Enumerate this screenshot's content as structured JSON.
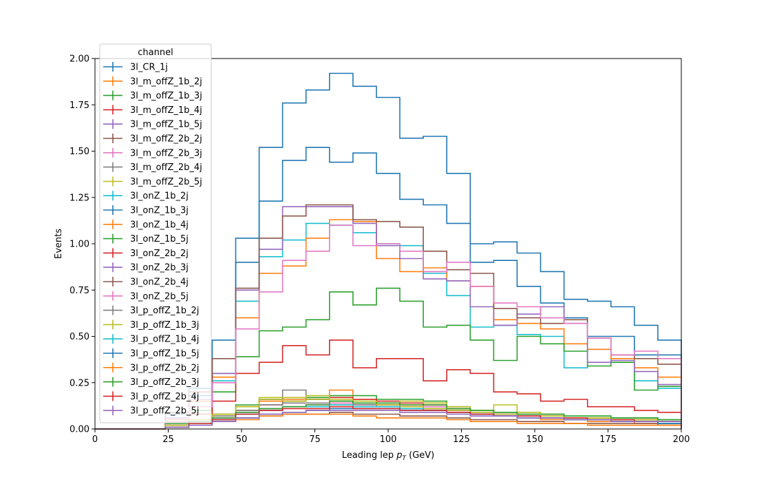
{
  "chart_data": {
    "type": "line",
    "drawstyle": "step",
    "xlabel_main": "Leading lep ",
    "xlabel_var": "p",
    "xlabel_sub": "T",
    "xlabel_unit": " (GeV)",
    "ylabel": "Events",
    "xlim": [
      0,
      200
    ],
    "ylim": [
      0,
      2.0
    ],
    "xticks": [
      0,
      25,
      50,
      75,
      100,
      125,
      150,
      175,
      200
    ],
    "yticks": [
      0.0,
      0.25,
      0.5,
      0.75,
      1.0,
      1.25,
      1.5,
      1.75,
      2.0
    ],
    "xticklabels": [
      "0",
      "25",
      "50",
      "75",
      "100",
      "125",
      "150",
      "175",
      "200"
    ],
    "yticklabels": [
      "0.00",
      "0.25",
      "0.50",
      "0.75",
      "1.00",
      "1.25",
      "1.50",
      "1.75",
      "2.00"
    ],
    "grid": false,
    "legend": {
      "title": "channel",
      "placement": "upper-left"
    },
    "bin_edges": [
      0,
      8,
      16,
      24,
      32,
      40,
      48,
      56,
      64,
      72,
      80,
      88,
      96,
      104,
      112,
      120,
      128,
      136,
      144,
      152,
      160,
      168,
      176,
      184,
      192,
      200
    ],
    "series": [
      {
        "name": "3l_CR_1j",
        "color": "#1f77b4",
        "values": [
          0,
          0,
          0,
          0.08,
          0.22,
          0.48,
          1.03,
          1.52,
          1.76,
          1.83,
          1.92,
          1.85,
          1.79,
          1.57,
          1.58,
          1.38,
          1.0,
          1.01,
          0.95,
          0.85,
          0.7,
          0.69,
          0.66,
          0.56,
          0.48
        ]
      },
      {
        "name": "3l_m_offZ_1b_2j",
        "color": "#ff7f0e",
        "values": [
          0,
          0,
          0,
          0.02,
          0.05,
          0.07,
          0.12,
          0.15,
          0.16,
          0.17,
          0.21,
          0.16,
          0.14,
          0.13,
          0.12,
          0.1,
          0.08,
          0.07,
          0.06,
          0.05,
          0.05,
          0.04,
          0.04,
          0.03,
          0.03
        ]
      },
      {
        "name": "3l_m_offZ_1b_3j",
        "color": "#2ca02c",
        "values": [
          0,
          0,
          0,
          0.02,
          0.05,
          0.08,
          0.13,
          0.16,
          0.17,
          0.17,
          0.18,
          0.18,
          0.16,
          0.16,
          0.15,
          0.12,
          0.1,
          0.09,
          0.08,
          0.08,
          0.07,
          0.07,
          0.06,
          0.06,
          0.05
        ]
      },
      {
        "name": "3l_m_offZ_1b_4j",
        "color": "#d62728",
        "values": [
          0,
          0,
          0,
          0.01,
          0.04,
          0.06,
          0.1,
          0.13,
          0.15,
          0.16,
          0.17,
          0.16,
          0.15,
          0.14,
          0.13,
          0.11,
          0.09,
          0.08,
          0.07,
          0.07,
          0.06,
          0.06,
          0.05,
          0.05,
          0.04
        ]
      },
      {
        "name": "3l_m_offZ_1b_5j",
        "color": "#9467bd",
        "values": [
          0,
          0,
          0,
          0.01,
          0.03,
          0.05,
          0.08,
          0.1,
          0.12,
          0.13,
          0.14,
          0.13,
          0.13,
          0.12,
          0.11,
          0.1,
          0.08,
          0.07,
          0.06,
          0.06,
          0.05,
          0.05,
          0.04,
          0.04,
          0.04
        ]
      },
      {
        "name": "3l_m_offZ_2b_2j",
        "color": "#8c564b",
        "values": [
          0,
          0,
          0,
          0.01,
          0.03,
          0.04,
          0.06,
          0.07,
          0.08,
          0.08,
          0.09,
          0.08,
          0.08,
          0.07,
          0.07,
          0.06,
          0.05,
          0.05,
          0.04,
          0.04,
          0.03,
          0.03,
          0.03,
          0.03,
          0.02
        ]
      },
      {
        "name": "3l_m_offZ_2b_3j",
        "color": "#e377c2",
        "values": [
          0,
          0,
          0,
          0.01,
          0.04,
          0.06,
          0.09,
          0.11,
          0.12,
          0.13,
          0.14,
          0.13,
          0.13,
          0.12,
          0.12,
          0.1,
          0.09,
          0.08,
          0.07,
          0.07,
          0.06,
          0.06,
          0.05,
          0.05,
          0.04
        ]
      },
      {
        "name": "3l_m_offZ_2b_4j",
        "color": "#7f7f7f",
        "values": [
          0,
          0,
          0,
          0.02,
          0.05,
          0.08,
          0.12,
          0.16,
          0.21,
          0.16,
          0.15,
          0.14,
          0.13,
          0.12,
          0.11,
          0.1,
          0.08,
          0.07,
          0.07,
          0.06,
          0.06,
          0.05,
          0.05,
          0.04,
          0.04
        ]
      },
      {
        "name": "3l_m_offZ_2b_5j",
        "color": "#bcbd22",
        "values": [
          0,
          0,
          0,
          0.02,
          0.05,
          0.08,
          0.12,
          0.17,
          0.17,
          0.18,
          0.16,
          0.15,
          0.14,
          0.15,
          0.14,
          0.12,
          0.1,
          0.13,
          0.09,
          0.08,
          0.06,
          0.06,
          0.05,
          0.05,
          0.04
        ]
      },
      {
        "name": "3l_onZ_1b_2j",
        "color": "#17becf",
        "values": [
          0,
          0,
          0,
          0.05,
          0.15,
          0.26,
          0.69,
          0.93,
          1.02,
          1.11,
          1.1,
          1.06,
          1.0,
          0.99,
          0.84,
          0.72,
          0.55,
          0.56,
          0.51,
          0.5,
          0.33,
          0.43,
          0.36,
          0.26,
          0.22
        ]
      },
      {
        "name": "3l_onZ_1b_3j",
        "color": "#1f77b4",
        "values": [
          0,
          0,
          0,
          0.06,
          0.18,
          0.3,
          0.9,
          1.23,
          1.45,
          1.52,
          1.44,
          1.49,
          1.38,
          1.24,
          1.21,
          1.11,
          0.9,
          0.91,
          0.77,
          0.68,
          0.6,
          0.5,
          0.5,
          0.4,
          0.4
        ]
      },
      {
        "name": "3l_onZ_1b_4j",
        "color": "#ff7f0e",
        "values": [
          0,
          0,
          0,
          0.05,
          0.15,
          0.28,
          0.6,
          0.84,
          0.88,
          1.03,
          1.13,
          1.12,
          0.92,
          0.85,
          0.87,
          0.8,
          0.77,
          0.59,
          0.57,
          0.54,
          0.46,
          0.43,
          0.38,
          0.33,
          0.28
        ]
      },
      {
        "name": "3l_onZ_1b_5j",
        "color": "#2ca02c",
        "values": [
          0,
          0,
          0,
          0.03,
          0.1,
          0.2,
          0.39,
          0.53,
          0.55,
          0.59,
          0.74,
          0.67,
          0.76,
          0.69,
          0.55,
          0.56,
          0.48,
          0.37,
          0.5,
          0.46,
          0.42,
          0.34,
          0.36,
          0.21,
          0.23
        ]
      },
      {
        "name": "3l_onZ_2b_2j",
        "color": "#d62728",
        "values": [
          0,
          0,
          0,
          0.02,
          0.08,
          0.15,
          0.3,
          0.36,
          0.45,
          0.4,
          0.48,
          0.33,
          0.38,
          0.38,
          0.26,
          0.32,
          0.3,
          0.2,
          0.19,
          0.15,
          0.16,
          0.12,
          0.12,
          0.1,
          0.09
        ]
      },
      {
        "name": "3l_onZ_2b_3j",
        "color": "#9467bd",
        "values": [
          0,
          0,
          0,
          0.06,
          0.16,
          0.3,
          0.75,
          0.97,
          1.2,
          1.2,
          1.2,
          1.11,
          0.99,
          0.92,
          0.81,
          0.8,
          0.66,
          0.56,
          0.62,
          0.66,
          0.57,
          0.36,
          0.37,
          0.31,
          0.24
        ]
      },
      {
        "name": "3l_onZ_2b_4j",
        "color": "#8c564b",
        "values": [
          0,
          0,
          0,
          0.09,
          0.2,
          0.38,
          0.76,
          1.03,
          1.15,
          1.21,
          1.21,
          1.13,
          1.12,
          1.09,
          0.96,
          0.86,
          0.84,
          0.65,
          0.6,
          0.57,
          0.59,
          0.49,
          0.4,
          0.38,
          0.35
        ]
      },
      {
        "name": "3l_onZ_2b_5j",
        "color": "#e377c2",
        "values": [
          0,
          0,
          0,
          0.04,
          0.12,
          0.25,
          0.54,
          0.74,
          0.91,
          0.96,
          1.1,
          0.99,
          1.0,
          0.96,
          0.85,
          0.9,
          0.77,
          0.68,
          0.66,
          0.6,
          0.57,
          0.49,
          0.4,
          0.42,
          0.38
        ]
      },
      {
        "name": "3l_p_offZ_1b_2j",
        "color": "#7f7f7f",
        "values": [
          0,
          0,
          0,
          0.02,
          0.05,
          0.07,
          0.1,
          0.13,
          0.14,
          0.14,
          0.13,
          0.13,
          0.12,
          0.11,
          0.1,
          0.09,
          0.08,
          0.07,
          0.06,
          0.06,
          0.05,
          0.05,
          0.04,
          0.04,
          0.03
        ]
      },
      {
        "name": "3l_p_offZ_1b_3j",
        "color": "#bcbd22",
        "values": [
          0,
          0,
          0,
          0.02,
          0.05,
          0.08,
          0.12,
          0.16,
          0.15,
          0.16,
          0.15,
          0.14,
          0.13,
          0.12,
          0.11,
          0.1,
          0.09,
          0.08,
          0.07,
          0.07,
          0.06,
          0.06,
          0.05,
          0.05,
          0.04
        ]
      },
      {
        "name": "3l_p_offZ_1b_4j",
        "color": "#17becf",
        "values": [
          0,
          0,
          0,
          0.01,
          0.03,
          0.05,
          0.08,
          0.1,
          0.12,
          0.12,
          0.13,
          0.12,
          0.12,
          0.11,
          0.1,
          0.09,
          0.08,
          0.07,
          0.06,
          0.06,
          0.05,
          0.05,
          0.04,
          0.04,
          0.03
        ]
      },
      {
        "name": "3l_p_offZ_1b_5j",
        "color": "#1f77b4",
        "values": [
          0,
          0,
          0,
          0.01,
          0.03,
          0.04,
          0.06,
          0.08,
          0.09,
          0.1,
          0.11,
          0.11,
          0.11,
          0.1,
          0.1,
          0.09,
          0.08,
          0.07,
          0.07,
          0.06,
          0.05,
          0.05,
          0.04,
          0.04,
          0.03
        ]
      },
      {
        "name": "3l_p_offZ_2b_2j",
        "color": "#ff7f0e",
        "values": [
          0,
          0,
          0,
          0.01,
          0.03,
          0.04,
          0.05,
          0.07,
          0.08,
          0.08,
          0.08,
          0.07,
          0.06,
          0.06,
          0.06,
          0.05,
          0.04,
          0.04,
          0.03,
          0.03,
          0.03,
          0.02,
          0.02,
          0.02,
          0.02
        ]
      },
      {
        "name": "3l_p_offZ_2b_3j",
        "color": "#2ca02c",
        "values": [
          0,
          0,
          0,
          0.01,
          0.04,
          0.06,
          0.09,
          0.11,
          0.12,
          0.13,
          0.15,
          0.14,
          0.14,
          0.13,
          0.13,
          0.11,
          0.1,
          0.09,
          0.08,
          0.08,
          0.07,
          0.07,
          0.06,
          0.06,
          0.05
        ]
      },
      {
        "name": "3l_p_offZ_2b_4j",
        "color": "#d62728",
        "values": [
          0,
          0,
          0,
          0.01,
          0.03,
          0.05,
          0.08,
          0.1,
          0.11,
          0.11,
          0.12,
          0.11,
          0.11,
          0.1,
          0.1,
          0.09,
          0.08,
          0.07,
          0.07,
          0.06,
          0.06,
          0.05,
          0.05,
          0.04,
          0.04
        ]
      },
      {
        "name": "3l_p_offZ_2b_5j",
        "color": "#9467bd",
        "values": [
          0,
          0,
          0,
          0.01,
          0.02,
          0.04,
          0.06,
          0.08,
          0.09,
          0.1,
          0.1,
          0.1,
          0.1,
          0.09,
          0.09,
          0.08,
          0.07,
          0.07,
          0.06,
          0.06,
          0.05,
          0.05,
          0.04,
          0.04,
          0.04
        ]
      }
    ]
  }
}
